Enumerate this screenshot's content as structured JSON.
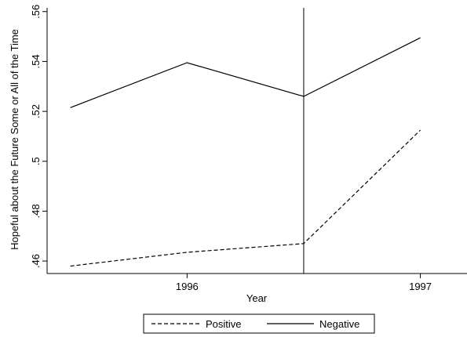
{
  "chart_data": {
    "type": "line",
    "title": "",
    "xlabel": "Year",
    "ylabel": "Hopeful about the Future Some or All of the Time",
    "x": [
      1995.5,
      1996,
      1996.5,
      1997
    ],
    "x_ticks": [
      1996,
      1997
    ],
    "xlim": [
      1995.4,
      1997.2
    ],
    "ylim": [
      0.455,
      0.5615
    ],
    "y_ticks": [
      {
        "value": 0.46,
        "label": ".46"
      },
      {
        "value": 0.48,
        "label": ".48"
      },
      {
        "value": 0.5,
        "label": ".5"
      },
      {
        "value": 0.52,
        "label": ".52"
      },
      {
        "value": 0.54,
        "label": ".54"
      },
      {
        "value": 0.56,
        "label": ".56"
      }
    ],
    "vline": 1996.5,
    "grid": false,
    "legend_position": "bottom",
    "series": [
      {
        "name": "Positive",
        "style": "dashed",
        "values": [
          0.458,
          0.4635,
          0.467,
          0.5125
        ]
      },
      {
        "name": "Negative",
        "style": "solid",
        "values": [
          0.5215,
          0.5395,
          0.526,
          0.5495
        ]
      }
    ]
  },
  "colors": {
    "line": "#000000",
    "background": "#ffffff"
  }
}
